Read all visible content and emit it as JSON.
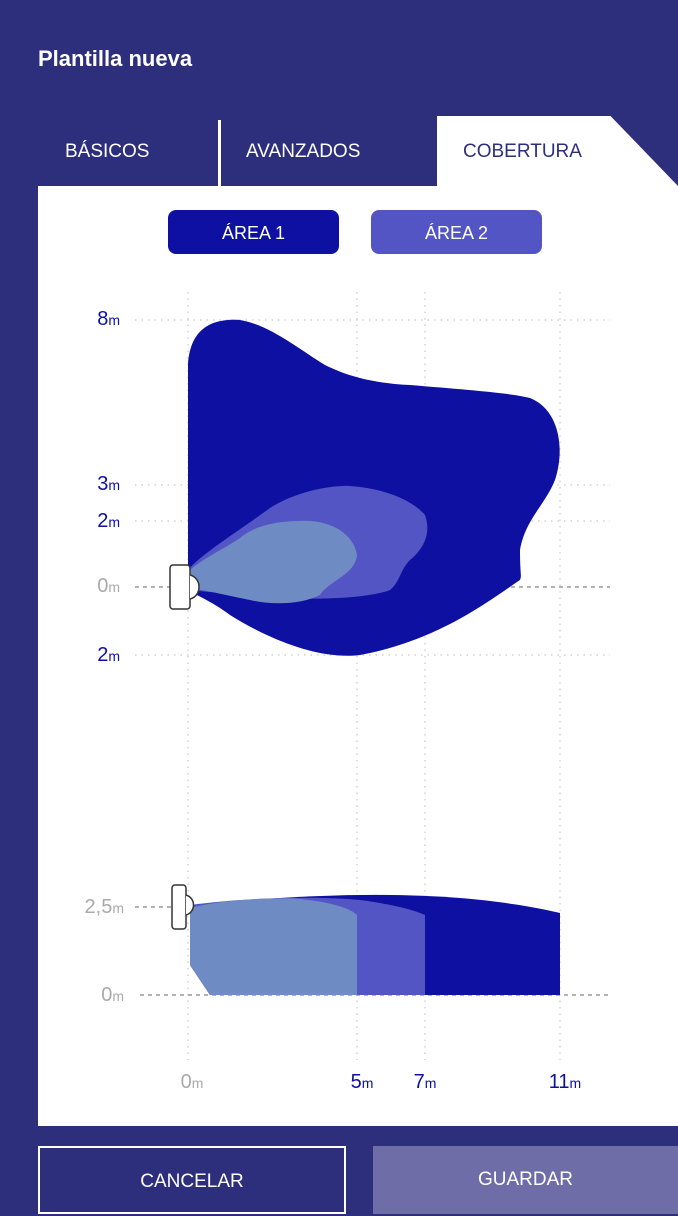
{
  "header": {
    "title": "Plantilla nueva"
  },
  "tabs": [
    {
      "label": "BÁSICOS"
    },
    {
      "label": "AVANZADOS"
    },
    {
      "label": "COBERTURA"
    }
  ],
  "area_buttons": [
    {
      "label": "ÁREA 1"
    },
    {
      "label": "ÁREA 2"
    }
  ],
  "top_view": {
    "y_labels": [
      {
        "value": "8",
        "unit": "m"
      },
      {
        "value": "3",
        "unit": "m"
      },
      {
        "value": "2",
        "unit": "m"
      },
      {
        "value": "0",
        "unit": "m"
      },
      {
        "value": "2",
        "unit": "m"
      }
    ]
  },
  "side_view": {
    "y_labels": [
      {
        "value": "2,5",
        "unit": "m"
      },
      {
        "value": "0",
        "unit": "m"
      }
    ],
    "x_labels": [
      {
        "value": "0",
        "unit": "m"
      },
      {
        "value": "5",
        "unit": "m"
      },
      {
        "value": "7",
        "unit": "m"
      },
      {
        "value": "11",
        "unit": "m"
      }
    ]
  },
  "colors": {
    "zone_far": "#0e10a2",
    "zone_mid": "#5355c4",
    "zone_near": "#6f8bc3",
    "muted_label": "#aaaaaa",
    "dark_label": "#0e10a2"
  },
  "footer": {
    "cancel_label": "CANCELAR",
    "save_label": "GUARDAR"
  }
}
